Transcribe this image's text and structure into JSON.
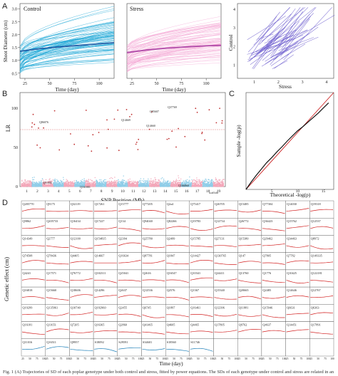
{
  "chart_data": [
    {
      "panel": "A",
      "type": "line",
      "subplots": [
        {
          "title": "Control",
          "xlabel": "Time (day)",
          "ylabel": "Shoot Diameter (cm)",
          "xticks": [
            25,
            50,
            75,
            100
          ],
          "yticks": [
            0.5,
            1.0,
            1.5,
            2.0,
            2.5,
            3.0
          ],
          "color": "#1aa6d6",
          "mean_color": "#1f5fa8",
          "mean_curve": {
            "x": [
              20,
              40,
              60,
              80,
              100,
              115
            ],
            "y": [
              1.35,
              1.45,
              1.52,
              1.58,
              1.64,
              1.68
            ]
          }
        },
        {
          "title": "Stress",
          "xlabel": "Time (day)",
          "xticks": [
            25,
            50,
            75,
            100
          ],
          "color": "#f4a9d6",
          "mean_color": "#b04aa8",
          "mean_curve": {
            "x": [
              20,
              40,
              60,
              80,
              100,
              115
            ],
            "y": [
              1.3,
              1.4,
              1.47,
              1.52,
              1.56,
              1.58
            ]
          }
        },
        {
          "xlabel": "Stress",
          "ylabel": "Control",
          "xticks": [
            1,
            2,
            3,
            4
          ],
          "yticks": [
            1,
            2,
            3,
            4
          ],
          "color": "#6a5acd"
        }
      ]
    },
    {
      "panel": "B",
      "type": "scatter",
      "xlabel": "SNP Position (Mb)",
      "ylabel": "LR",
      "yticks": [
        0,
        50,
        100
      ],
      "chromosomes": [
        "1",
        "2",
        "3",
        "4",
        "5",
        "6",
        "7",
        "8",
        "9",
        "10",
        "11",
        "12",
        "13",
        "14",
        "15",
        "16",
        "17",
        "18",
        "19"
      ],
      "chromosome_colors": [
        "#f3a7b9",
        "#8fcde8"
      ],
      "threshold": 55,
      "annotations": [
        "Q86076",
        "Q14669",
        "Q95607",
        "Q37769",
        "Q14660",
        "Q51905",
        "Q161001",
        "Q166860",
        "scaffold"
      ]
    },
    {
      "panel": "C",
      "type": "scatter",
      "xlabel": "Theoretical -log(p)",
      "ylabel": "Sample -log(p)",
      "xticks": [
        5,
        10,
        15
      ],
      "qq_points": [
        [
          0,
          0
        ],
        [
          1,
          1.3
        ],
        [
          2,
          2.5
        ],
        [
          3,
          3.6
        ],
        [
          4,
          4.7
        ],
        [
          5,
          5.6
        ],
        [
          6,
          6.6
        ],
        [
          7,
          7.5
        ],
        [
          8,
          8.5
        ],
        [
          9,
          9.4
        ],
        [
          10,
          10.3
        ],
        [
          11,
          11.0
        ],
        [
          12,
          11.8
        ],
        [
          13,
          12.6
        ],
        [
          14,
          13.4
        ],
        [
          15,
          14.3
        ],
        [
          16,
          15.2
        ]
      ],
      "diagonal_color": "#cc2222"
    },
    {
      "panel": "D",
      "type": "line",
      "ylabel": "Genetic effect (cm)",
      "xlabel": "Time (day)",
      "grid_rows": 9,
      "grid_cols": 13,
      "cell_xticks": [
        "25",
        "50",
        "75",
        "100"
      ],
      "line_color": "#d22020",
      "last_row_color": "#1e7fb8",
      "labels": [
        "Q205770",
        "Q9175",
        "Q32119",
        "Q17261",
        "Q15777",
        "Q77205",
        "Q2a4",
        "Q75417",
        "Q26705",
        "Q15485",
        "Q77304",
        "Q14030",
        "Q19318",
        "Q9862",
        "Q205733",
        "Q16434",
        "Q17227",
        "Q134",
        "Q94040",
        "Q82266",
        "Q19783",
        "Q12734",
        "Q26772",
        "Q36423",
        "Q15762",
        "Q12537",
        "Q14349",
        "Q2777",
        "Q12100",
        "Q154835",
        "Q2394",
        "Q25780",
        "Q2499",
        "Q15785",
        "Q27131",
        "Q15380",
        "Q29462",
        "Q34463",
        "Q8972",
        "Q74508",
        "Q78436",
        "Q4405",
        "Q14667",
        "Q16634",
        "Q87781",
        "Q1847",
        "Q14427",
        "Q130765",
        "Q147",
        "Q7805",
        "Q7782",
        "Q149335",
        "Q4241",
        "Q17571",
        "Q76772",
        "Q102311",
        "Q25041",
        "Q2616",
        "Q16547",
        "Q10341",
        "Q24411",
        "Q13760",
        "Q1776",
        "Q10425",
        "Q122181",
        "Q16818",
        "Q15660",
        "Q18606",
        "Q14296",
        "Q2637",
        "Q12536",
        "Q2576",
        "Q1367",
        "Q15340",
        "Q20665",
        "Q2485",
        "Q14646",
        "Q12767",
        "Q19299",
        "Q135961",
        "Q10740",
        "Q192960",
        "Q2455",
        "Q6745",
        "Q1897",
        "Q16461",
        "Q12396",
        "Q11881",
        "Q15946",
        "Q6631",
        "Q6363",
        "Q16181",
        "Q11651",
        "Q7205",
        "Q16365",
        "Q2860",
        "Q41465",
        "Q4605",
        "Q4465",
        "Q17805",
        "Q9762",
        "Q4637",
        "Q14451",
        "Q17891",
        "Q11016",
        "Q16511",
        "Q9957",
        "S18092",
        "S29591",
        "S34601",
        "S18560",
        "S11746"
      ]
    }
  ],
  "caption": "Fig. 1 (A) Trajectories of SD of each poplar genotype under both control and stress, fitted by power equations. The SDs of each genotype under control and stress are related in an allometric manner. (B) Manhattan plot of SNPs associated with SD..."
}
